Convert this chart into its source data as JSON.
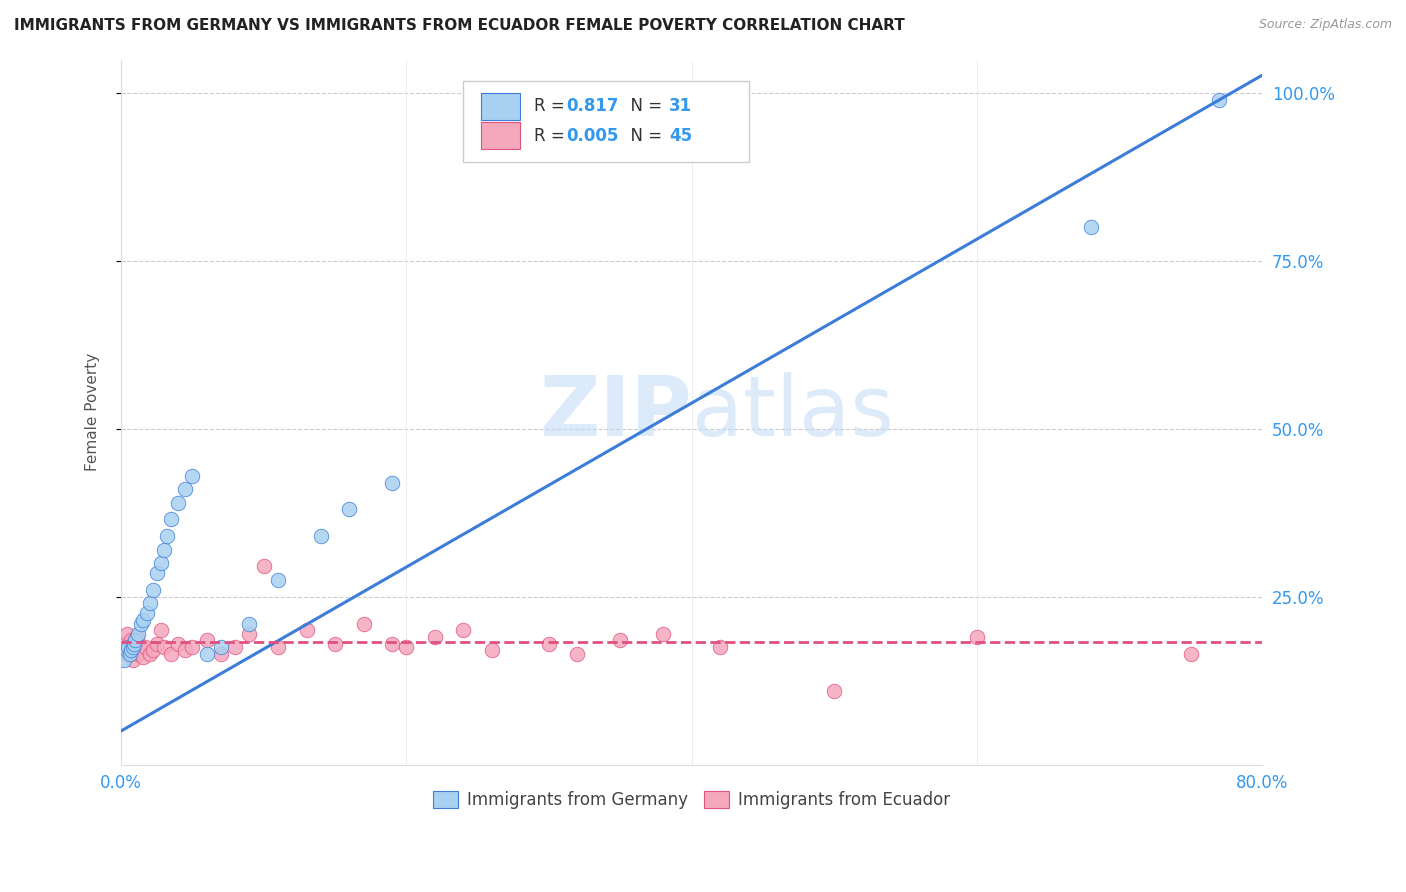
{
  "title": "IMMIGRANTS FROM GERMANY VS IMMIGRANTS FROM ECUADOR FEMALE POVERTY CORRELATION CHART",
  "source": "Source: ZipAtlas.com",
  "ylabel": "Female Poverty",
  "xlim": [
    0,
    0.8
  ],
  "ylim": [
    0,
    1.05
  ],
  "r_germany": 0.817,
  "n_germany": 31,
  "r_ecuador": 0.005,
  "n_ecuador": 45,
  "legend_label_germany": "Immigrants from Germany",
  "legend_label_ecuador": "Immigrants from Ecuador",
  "color_germany": "#A8D0F0",
  "color_ecuador": "#F5A8BC",
  "line_color_germany": "#3B7DD8",
  "line_color_ecuador": "#E05080",
  "watermark_zip": "ZIP",
  "watermark_atlas": "atlas",
  "germany_x": [
    0.002,
    0.004,
    0.005,
    0.006,
    0.007,
    0.008,
    0.009,
    0.01,
    0.012,
    0.014,
    0.015,
    0.018,
    0.02,
    0.022,
    0.025,
    0.028,
    0.03,
    0.032,
    0.035,
    0.04,
    0.045,
    0.05,
    0.06,
    0.07,
    0.09,
    0.11,
    0.14,
    0.16,
    0.19,
    0.68,
    0.77
  ],
  "germany_y": [
    0.155,
    0.17,
    0.175,
    0.165,
    0.17,
    0.175,
    0.18,
    0.185,
    0.195,
    0.21,
    0.215,
    0.225,
    0.24,
    0.26,
    0.285,
    0.3,
    0.32,
    0.34,
    0.365,
    0.39,
    0.41,
    0.43,
    0.165,
    0.175,
    0.21,
    0.275,
    0.34,
    0.38,
    0.42,
    0.8,
    0.99
  ],
  "ecuador_x": [
    0.002,
    0.003,
    0.004,
    0.005,
    0.006,
    0.007,
    0.008,
    0.009,
    0.01,
    0.011,
    0.012,
    0.013,
    0.015,
    0.017,
    0.02,
    0.022,
    0.025,
    0.028,
    0.03,
    0.035,
    0.04,
    0.045,
    0.05,
    0.06,
    0.07,
    0.08,
    0.09,
    0.1,
    0.11,
    0.13,
    0.15,
    0.17,
    0.19,
    0.2,
    0.22,
    0.24,
    0.26,
    0.3,
    0.32,
    0.35,
    0.38,
    0.42,
    0.5,
    0.6,
    0.75
  ],
  "ecuador_y": [
    0.175,
    0.18,
    0.195,
    0.165,
    0.17,
    0.185,
    0.155,
    0.175,
    0.185,
    0.19,
    0.165,
    0.175,
    0.16,
    0.175,
    0.165,
    0.17,
    0.18,
    0.2,
    0.175,
    0.165,
    0.18,
    0.17,
    0.175,
    0.185,
    0.165,
    0.175,
    0.195,
    0.295,
    0.175,
    0.2,
    0.18,
    0.21,
    0.18,
    0.175,
    0.19,
    0.2,
    0.17,
    0.18,
    0.165,
    0.185,
    0.195,
    0.175,
    0.11,
    0.19,
    0.165
  ],
  "yticks": [
    0.25,
    0.5,
    0.75,
    1.0
  ],
  "ytick_labels": [
    "25.0%",
    "50.0%",
    "75.0%",
    "100.0%"
  ],
  "xticks": [
    0.0,
    0.2,
    0.4,
    0.6,
    0.8
  ],
  "xtick_labels_show": [
    "0.0%",
    "",
    "",
    "",
    "80.0%"
  ]
}
